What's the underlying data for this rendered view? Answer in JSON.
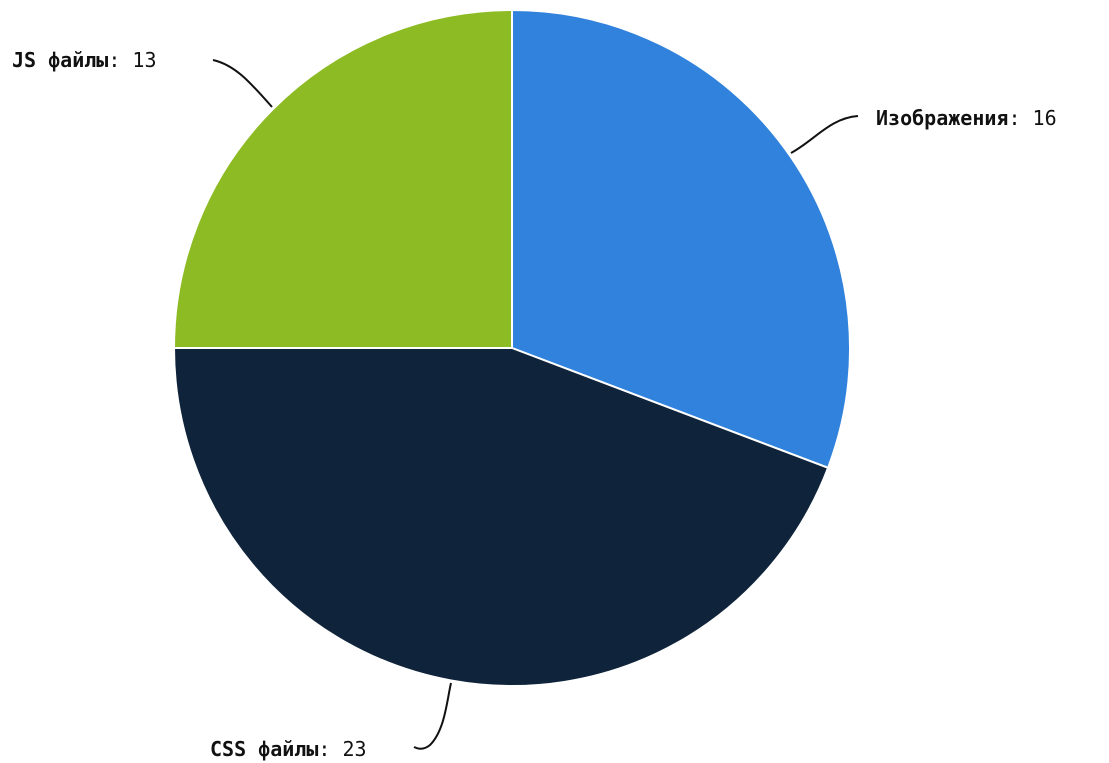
{
  "chart_data": {
    "type": "pie",
    "title": "",
    "slices": [
      {
        "label": "Изображения",
        "value": 16,
        "color": "#3182dc"
      },
      {
        "label": "CSS файлы",
        "value": 23,
        "color": "#0f233b"
      },
      {
        "label": "JS файлы",
        "value": 13,
        "color": "#8dbb24"
      }
    ],
    "label_separator": ": ",
    "start_angle": "12 o'clock",
    "direction": "clockwise",
    "legend": "none",
    "labels": "outside with connector lines"
  }
}
